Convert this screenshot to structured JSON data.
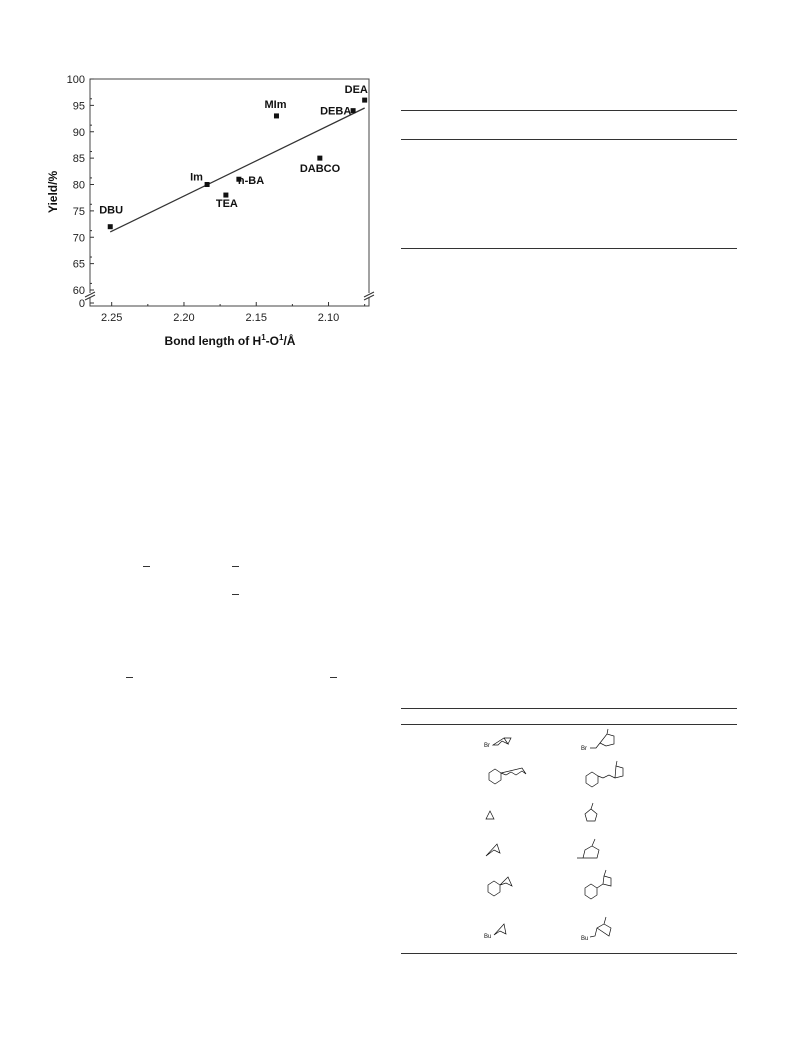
{
  "chart_data": {
    "type": "scatter",
    "title": "",
    "xlabel": "Bond length of H",
    "xlabel_sup1": "1",
    "xlabel_mid": "-O",
    "xlabel_sup2": "1",
    "xlabel_end": "/Å",
    "ylabel": "Yield/%",
    "x_reversed": true,
    "xlim": [
      2.265,
      2.072
    ],
    "ylim_upper": [
      60,
      100
    ],
    "y_axis_break": true,
    "x_ticks": [
      "2.25",
      "2.20",
      "2.15",
      "2.10"
    ],
    "y_ticks": [
      "100",
      "95",
      "90",
      "85",
      "80",
      "75",
      "70",
      "65",
      "60",
      "0"
    ],
    "points": [
      {
        "label": "DBU",
        "x": 2.251,
        "y": 72
      },
      {
        "label": "Im",
        "x": 2.184,
        "y": 80
      },
      {
        "label": "TEA",
        "x": 2.171,
        "y": 78
      },
      {
        "label": "n-BA",
        "x": 2.162,
        "y": 81
      },
      {
        "label": "MIm",
        "x": 2.136,
        "y": 93
      },
      {
        "label": "DABCO",
        "x": 2.106,
        "y": 85
      },
      {
        "label": "DEBA",
        "x": 2.083,
        "y": 94
      },
      {
        "label": "DEA",
        "x": 2.075,
        "y": 96
      }
    ],
    "fit_line": {
      "x": [
        2.251,
        2.075
      ],
      "y": [
        71,
        94.5
      ]
    },
    "colors": {
      "marker": "#111111",
      "line": "#333333",
      "frame": "#444444"
    }
  },
  "structures": {
    "sub1_label": "Br",
    "prod1_label": "Br",
    "sub6_label": "Bu",
    "prod6_label": "Bu"
  }
}
